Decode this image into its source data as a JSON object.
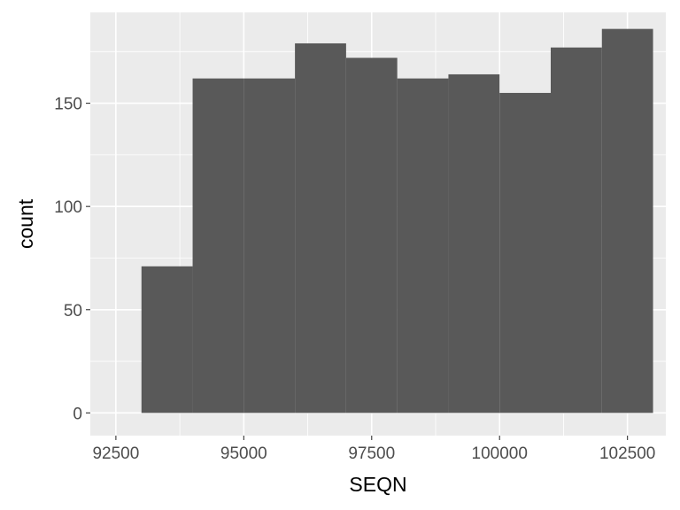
{
  "chart_data": {
    "type": "bar",
    "subtype": "histogram",
    "xlabel": "SEQN",
    "ylabel": "count",
    "xlim": [
      92000,
      103250
    ],
    "ylim": [
      -11,
      194
    ],
    "x_ticks": [
      92500,
      95000,
      97500,
      100000,
      102500
    ],
    "y_ticks": [
      0,
      50,
      100,
      150
    ],
    "grid": true,
    "bins": [
      {
        "x0": 93000,
        "x1": 94000,
        "count": 71
      },
      {
        "x0": 94000,
        "x1": 95000,
        "count": 162
      },
      {
        "x0": 95000,
        "x1": 96000,
        "count": 162
      },
      {
        "x0": 96000,
        "x1": 97000,
        "count": 179
      },
      {
        "x0": 97000,
        "x1": 98000,
        "count": 172
      },
      {
        "x0": 98000,
        "x1": 99000,
        "count": 162
      },
      {
        "x0": 99000,
        "x1": 100000,
        "count": 164
      },
      {
        "x0": 100000,
        "x1": 101000,
        "count": 155
      },
      {
        "x0": 101000,
        "x1": 102000,
        "count": 177
      },
      {
        "x0": 102000,
        "x1": 103000,
        "count": 186
      }
    ],
    "colors": {
      "panel": "#ebebeb",
      "grid_major": "#ffffff",
      "bar": "#595959",
      "tick": "#333333"
    }
  }
}
